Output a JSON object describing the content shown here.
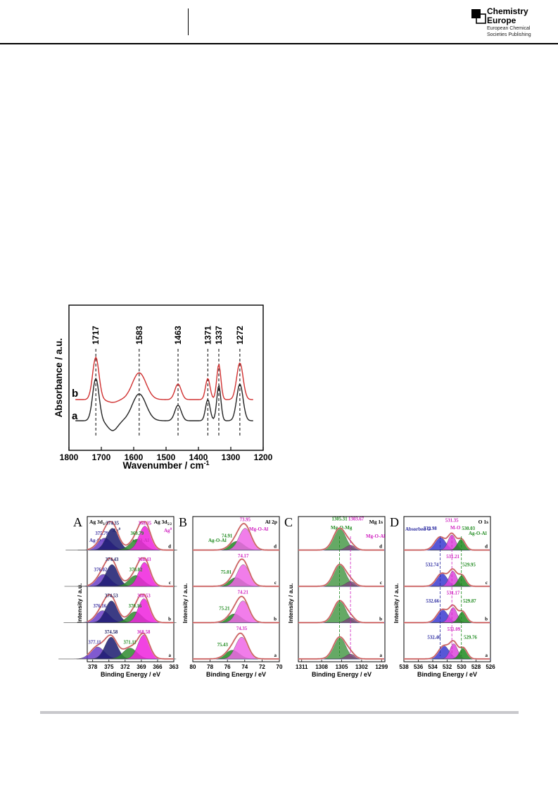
{
  "publisher": {
    "name_line1": "Chemistry",
    "name_line2": "Europe",
    "sub_line1": "European Chemical",
    "sub_line2": "Societies Publishing"
  },
  "ir_chart": {
    "chart_data": {
      "type": "line",
      "xlabel": "Wavenumber / cm",
      "xlabel_sup": "-1",
      "ylabel": "Absorbance / a.u.",
      "xlim": [
        1800,
        1200
      ],
      "x_ticks": [
        1800,
        1700,
        1600,
        1500,
        1400,
        1300,
        1200
      ],
      "series": [
        {
          "name": "a",
          "color": "#222222"
        },
        {
          "name": "b",
          "color": "#d03030"
        }
      ],
      "peaks": [
        {
          "label": "1717",
          "x": 1717
        },
        {
          "label": "1583",
          "x": 1583
        },
        {
          "label": "1463",
          "x": 1463
        },
        {
          "label": "1371",
          "x": 1371
        },
        {
          "label": "1337",
          "x": 1337
        },
        {
          "label": "1272",
          "x": 1272
        }
      ]
    }
  },
  "xps_chart": {
    "ylabel": "Intensity / a.u.",
    "xlabel": "Binding Energy / eV",
    "row_labels": [
      "d",
      "c",
      "b",
      "a"
    ],
    "panels": [
      {
        "letter": "A",
        "region_left": "Ag 3d",
        "region_left_sub": "3/2",
        "region_right": "Ag 3d",
        "region_right_sub": "5/2",
        "xlim": [
          379,
          363
        ],
        "x_ticks": [
          "378",
          "375",
          "372",
          "369",
          "366",
          "363"
        ],
        "species_labels": [
          {
            "text": "Ag-O-Al",
            "color": "#3a2fa0"
          },
          {
            "text": "Ag",
            "sup": "0",
            "color": "#1a1a60"
          },
          {
            "text": "Ag-O-Al",
            "color": "#1e8a1e"
          },
          {
            "text": "Ag",
            "sup": "0",
            "color": "#d020c0"
          }
        ],
        "rows": [
          {
            "values": [
              "375.79",
              "374.35",
              "369.79",
              "368.35"
            ]
          },
          {
            "values": [
              "376.02",
              "374.43",
              "370.02",
              "368.43"
            ]
          },
          {
            "values": [
              "376.16",
              "374.53",
              "370.16",
              "368.53"
            ]
          },
          {
            "values": [
              "377.11",
              "374.58",
              "371.11",
              "368.58"
            ]
          }
        ]
      },
      {
        "letter": "B",
        "region_right": "Al 2p",
        "xlim": [
          80,
          70
        ],
        "x_ticks": [
          "80",
          "78",
          "76",
          "74",
          "72",
          "70"
        ],
        "species_labels": [
          {
            "text": "Ag-O-Al",
            "color": "#1e8a1e"
          },
          {
            "text": "Mg-O-Al",
            "color": "#d020c0"
          }
        ],
        "rows": [
          {
            "values": [
              "74.91",
              "73.95"
            ]
          },
          {
            "values": [
              "75.01",
              "74.17"
            ]
          },
          {
            "values": [
              "75.21",
              "74.21"
            ]
          },
          {
            "values": [
              "75.43",
              "74.35"
            ]
          }
        ]
      },
      {
        "letter": "C",
        "region_right": "Mg 1s",
        "xlim": [
          1311.5,
          1298.5
        ],
        "x_ticks": [
          "1311",
          "1308",
          "1305",
          "1302",
          "1299"
        ],
        "species_labels": [
          {
            "text": "Mg-O-Mg",
            "color": "#1e8a1e"
          },
          {
            "text": "Mg-O-Al",
            "color": "#d020c0"
          }
        ],
        "rows": [
          {
            "values": [
              "1305.31",
              "1303.67"
            ]
          }
        ]
      },
      {
        "letter": "D",
        "region_right": "O 1s",
        "xlim": [
          538,
          526
        ],
        "x_ticks": [
          "538",
          "536",
          "534",
          "532",
          "530",
          "528",
          "526"
        ],
        "species_labels": [
          {
            "text": "Absorbed O",
            "color": "#2a2aa0"
          },
          {
            "text": "M-O",
            "color": "#d020c0"
          },
          {
            "text": "Ag-O-Al",
            "color": "#1e8a1e"
          }
        ],
        "rows": [
          {
            "values": [
              "532.98",
              "531.35",
              "530.03"
            ]
          },
          {
            "values": [
              "532.74",
              "531.21",
              "529.95"
            ]
          },
          {
            "values": [
              "532.66",
              "531.17",
              "529.87"
            ]
          },
          {
            "values": [
              "532.46",
              "531.09",
              "529.76"
            ]
          }
        ]
      }
    ]
  }
}
